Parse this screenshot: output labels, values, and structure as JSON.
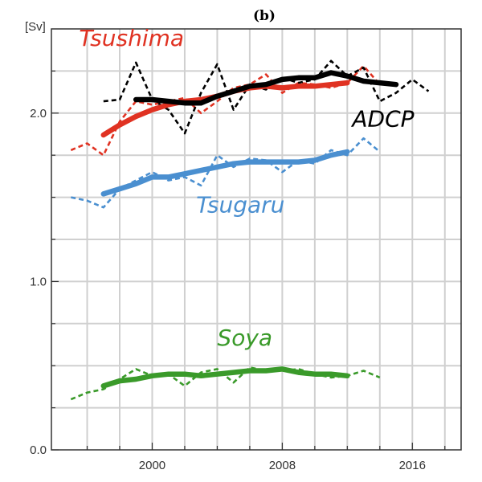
{
  "chart_data": {
    "type": "line",
    "title": "(b)",
    "ylabel": "[Sv]",
    "xlabel": "",
    "xlim": [
      1993.8,
      2019.0
    ],
    "ylim": [
      0.0,
      2.5
    ],
    "x_ticks": [
      2000,
      2008,
      2016
    ],
    "x_tick_labels": [
      "2000",
      "2008",
      "2016"
    ],
    "y_ticks": [
      0.0,
      1.0,
      2.0
    ],
    "y_tick_labels": [
      "0.0",
      "1.0",
      "2.0"
    ],
    "x_minor_ticks": [
      1996,
      1998,
      2000,
      2002,
      2004,
      2006,
      2008,
      2010,
      2012,
      2014,
      2016,
      2018
    ],
    "y_minor_ticks": [
      0.0,
      0.25,
      0.5,
      0.75,
      1.0,
      1.25,
      1.5,
      1.75,
      2.0,
      2.25
    ],
    "grid": true,
    "labels": [
      {
        "text": "Tsushima",
        "color": "#e03222",
        "x": 1995.5,
        "y": 2.4
      },
      {
        "text": "ADCP",
        "color": "#000000",
        "x": 2012.3,
        "y": 1.92
      },
      {
        "text": "Tsugaru",
        "color": "#4a8fd0",
        "x": 2002.7,
        "y": 1.41
      },
      {
        "text": "Soya",
        "color": "#3a9a2a",
        "x": 2004.0,
        "y": 0.62
      }
    ],
    "series": [
      {
        "name": "Tsushima",
        "style": "dashed",
        "color": "#e03222",
        "x": [
          1995,
          1996,
          1997,
          1998,
          1999,
          2000,
          2001,
          2002,
          2003,
          2004,
          2005,
          2006,
          2007,
          2008,
          2009,
          2010,
          2011,
          2012,
          2013,
          2014
        ],
        "y": [
          1.78,
          1.82,
          1.75,
          1.95,
          2.07,
          2.05,
          2.07,
          2.09,
          2.0,
          2.07,
          2.15,
          2.17,
          2.23,
          2.12,
          2.18,
          2.17,
          2.15,
          2.18,
          2.28,
          2.17
        ]
      },
      {
        "name": "Tsushima",
        "style": "solid",
        "color": "#e03222",
        "x": [
          1997,
          1998,
          1999,
          2000,
          2001,
          2002,
          2003,
          2004,
          2005,
          2006,
          2007,
          2008,
          2009,
          2010,
          2011,
          2012
        ],
        "y": [
          1.87,
          1.93,
          1.98,
          2.02,
          2.05,
          2.07,
          2.08,
          2.1,
          2.13,
          2.15,
          2.16,
          2.15,
          2.16,
          2.16,
          2.17,
          2.18
        ]
      },
      {
        "name": "ADCP",
        "style": "dashed",
        "color": "#000000",
        "x": [
          1997,
          1998,
          1999,
          2000,
          2001,
          2002,
          2003,
          2004,
          2005,
          2006,
          2007,
          2008,
          2009,
          2010,
          2011,
          2012,
          2013,
          2014,
          2015,
          2016,
          2017
        ],
        "y": [
          2.07,
          2.08,
          2.3,
          2.08,
          2.02,
          1.88,
          2.12,
          2.29,
          2.02,
          2.17,
          2.14,
          2.21,
          2.18,
          2.2,
          2.31,
          2.22,
          2.27,
          2.07,
          2.12,
          2.2,
          2.13
        ]
      },
      {
        "name": "ADCP",
        "style": "solid",
        "color": "#000000",
        "x": [
          1999,
          2000,
          2001,
          2002,
          2003,
          2004,
          2005,
          2006,
          2007,
          2008,
          2009,
          2010,
          2011,
          2012,
          2013,
          2014,
          2015
        ],
        "y": [
          2.08,
          2.08,
          2.07,
          2.06,
          2.06,
          2.1,
          2.13,
          2.16,
          2.17,
          2.2,
          2.21,
          2.21,
          2.24,
          2.22,
          2.19,
          2.18,
          2.17
        ]
      },
      {
        "name": "Tsugaru",
        "style": "dashed",
        "color": "#4a8fd0",
        "x": [
          1995,
          1996,
          1997,
          1998,
          1999,
          2000,
          2001,
          2002,
          2003,
          2004,
          2005,
          2006,
          2007,
          2008,
          2009,
          2010,
          2011,
          2012,
          2013,
          2014
        ],
        "y": [
          1.5,
          1.48,
          1.44,
          1.55,
          1.6,
          1.65,
          1.6,
          1.62,
          1.57,
          1.75,
          1.68,
          1.73,
          1.72,
          1.65,
          1.72,
          1.7,
          1.78,
          1.75,
          1.85,
          1.77
        ]
      },
      {
        "name": "Tsugaru",
        "style": "solid",
        "color": "#4a8fd0",
        "x": [
          1997,
          1998,
          1999,
          2000,
          2001,
          2002,
          2003,
          2004,
          2005,
          2006,
          2007,
          2008,
          2009,
          2010,
          2011,
          2012
        ],
        "y": [
          1.52,
          1.55,
          1.58,
          1.62,
          1.62,
          1.64,
          1.66,
          1.68,
          1.7,
          1.71,
          1.71,
          1.71,
          1.71,
          1.72,
          1.75,
          1.77
        ]
      },
      {
        "name": "Soya",
        "style": "dashed",
        "color": "#3a9a2a",
        "x": [
          1995,
          1996,
          1997,
          1998,
          1999,
          2000,
          2001,
          2002,
          2003,
          2004,
          2005,
          2006,
          2007,
          2008,
          2009,
          2010,
          2011,
          2012,
          2013,
          2014
        ],
        "y": [
          0.3,
          0.34,
          0.36,
          0.42,
          0.48,
          0.44,
          0.45,
          0.38,
          0.46,
          0.48,
          0.4,
          0.49,
          0.47,
          0.47,
          0.48,
          0.45,
          0.43,
          0.44,
          0.47,
          0.43
        ]
      },
      {
        "name": "Soya",
        "style": "solid",
        "color": "#3a9a2a",
        "x": [
          1997,
          1998,
          1999,
          2000,
          2001,
          2002,
          2003,
          2004,
          2005,
          2006,
          2007,
          2008,
          2009,
          2010,
          2011,
          2012
        ],
        "y": [
          0.38,
          0.41,
          0.42,
          0.44,
          0.45,
          0.45,
          0.44,
          0.45,
          0.46,
          0.47,
          0.47,
          0.48,
          0.46,
          0.45,
          0.45,
          0.44
        ]
      }
    ]
  }
}
